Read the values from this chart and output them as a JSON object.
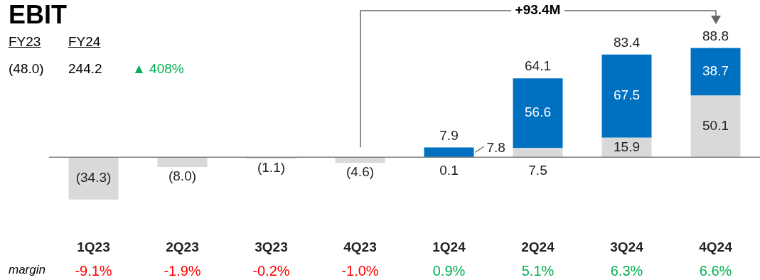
{
  "chart_data": {
    "type": "bar",
    "title": "EBIT",
    "stacked": true,
    "tick_labels": "x",
    "categories": [
      "1Q23",
      "2Q23",
      "3Q23",
      "4Q23",
      "1Q24",
      "2Q24",
      "3Q24",
      "4Q24"
    ],
    "series": [
      {
        "color": "#d9d9d9",
        "values": [
          -34.3,
          -8.0,
          -1.1,
          -4.6,
          0.1,
          7.5,
          15.9,
          50.1
        ],
        "value_labels": [
          "(34.3)",
          "(8.0)",
          "(1.1)",
          "(4.6)",
          "0.1",
          "7.5",
          "15.9",
          "50.1"
        ]
      },
      {
        "color": "#0070c0",
        "values": [
          null,
          null,
          null,
          null,
          7.8,
          56.6,
          67.5,
          38.7
        ],
        "value_labels": [
          null,
          null,
          null,
          null,
          "7.8",
          "56.6",
          "67.5",
          "38.7"
        ]
      }
    ],
    "totals": [
      null,
      null,
      null,
      null,
      "7.9",
      "64.1",
      "83.4",
      "88.8"
    ],
    "annotations": [
      "FY23",
      "FY24",
      "(48.0)",
      "244.2",
      "▲ 408%",
      "+93.4M",
      "margin",
      "-9.1%",
      "-1.9%",
      "-0.2%",
      "-1.0%",
      "0.9%",
      "5.1%",
      "6.3%",
      "6.6%"
    ]
  }
}
